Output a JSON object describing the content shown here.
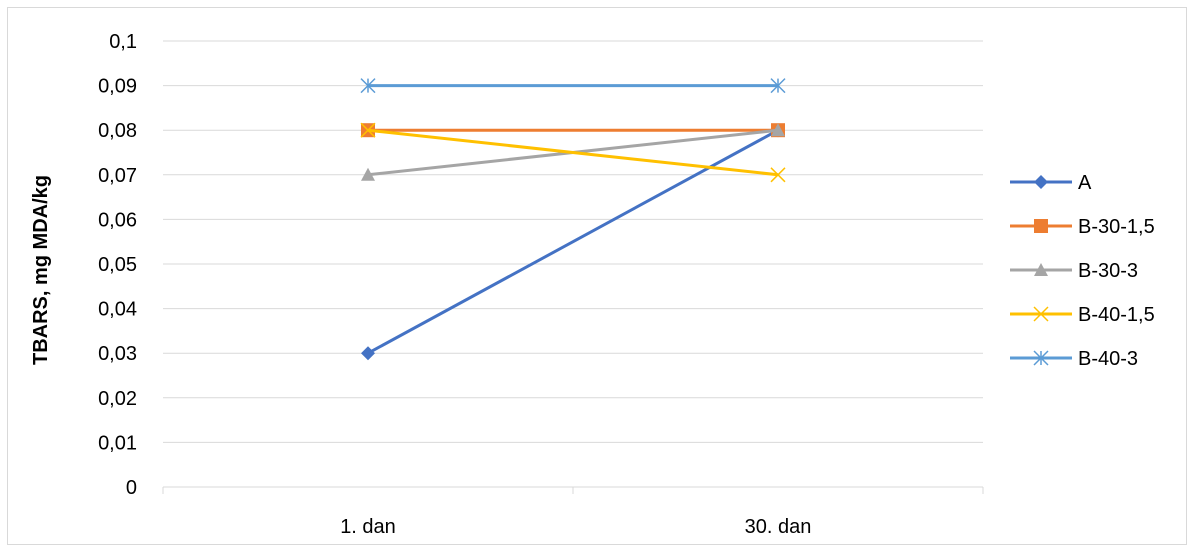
{
  "chart_data": {
    "type": "line",
    "categories": [
      "1. dan",
      "30. dan"
    ],
    "series": [
      {
        "name": "A",
        "values": [
          0.03,
          0.08
        ],
        "color": "#4472C4",
        "marker": "diamond"
      },
      {
        "name": "B-30-1,5",
        "values": [
          0.08,
          0.08
        ],
        "color": "#ED7D31",
        "marker": "square"
      },
      {
        "name": "B-30-3",
        "values": [
          0.07,
          0.08
        ],
        "color": "#A5A5A5",
        "marker": "triangle"
      },
      {
        "name": "B-40-1,5",
        "values": [
          0.08,
          0.07
        ],
        "color": "#FFC000",
        "marker": "x"
      },
      {
        "name": "B-40-3",
        "values": [
          0.09,
          0.09
        ],
        "color": "#5B9BD5",
        "marker": "star"
      }
    ],
    "ylabel": "TBARS, mg MDA/kg",
    "xlabel": "",
    "ylim": [
      0,
      0.1
    ],
    "yticks": [
      "0",
      "0,01",
      "0,02",
      "0,03",
      "0,04",
      "0,05",
      "0,06",
      "0,07",
      "0,08",
      "0,09",
      "0,1"
    ],
    "grid": true,
    "legend_position": "right"
  }
}
